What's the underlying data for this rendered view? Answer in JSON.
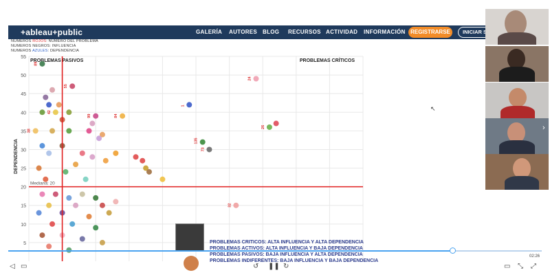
{
  "header": {
    "logo": "+ableau+public",
    "nav": [
      "GALERÍA",
      "AUTORES",
      "BLOG",
      "RECURSOS",
      "ACTIVIDAD",
      "INFORMACIÓN"
    ],
    "register_label": "REGISTRARSE",
    "login_label": "INICIAR SESIÓN"
  },
  "notes": {
    "line1_pre": "NUMEROS ",
    "line1_red": "ROJOS",
    "line1_post": ": NUMERO DEL PROBLEMA",
    "line2": "NUMEROS NEGROS: INFLUENCIA",
    "line3_pre": "NUMEROS ",
    "line3_blue": "AZULES",
    "line3_post": ": DEPENDENCIA"
  },
  "legend": [
    "PROBLEMAS CRITICOS: ALTA INFLUENCIA Y ALTA DEPENDENCIA",
    "PROBLEMAS ACTIVOS: ALTA INFLUENCIA Y BAJA DEPENDENCIA",
    "PROBLEMAS PASIVOS: BAJA INFLUENCIA Y ALTA DEPENDENCIA",
    "PROBLEMAS INDIFERENTES: BAJA INFLUENCIA Y BAJA DEPENDENCIA"
  ],
  "player": {
    "time": "02:26",
    "progress": 0.83
  },
  "colors": {
    "header_bg": "#1f3a5c",
    "register_bg": "#f28c28",
    "median_line": "#e02020"
  },
  "chart_data": {
    "type": "scatter",
    "ylabel": "DEPENDENCIA",
    "ylim": [
      0,
      55
    ],
    "yticks": [
      5,
      10,
      15,
      20,
      25,
      30,
      35,
      40,
      45,
      50,
      55
    ],
    "median_label": "Mediana: 20",
    "median_y": 20,
    "median_x": 5,
    "xlim": [
      0,
      50
    ],
    "quadrant_labels": {
      "top_left": "PROBLEMAS PASIVOS",
      "top_right": "PROBLEMAS CRÍTICOS"
    },
    "points": [
      {
        "x": 2.0,
        "y": 53,
        "c": "#3a7a4a",
        "label": "89"
      },
      {
        "x": 6.5,
        "y": 47,
        "c": "#c94a6a",
        "label": "55"
      },
      {
        "x": 3.5,
        "y": 46,
        "c": "#d9a0a8",
        "label": ""
      },
      {
        "x": 2.5,
        "y": 44,
        "c": "#8a6a9a",
        "label": ""
      },
      {
        "x": 3.0,
        "y": 42,
        "c": "#3a5ac8",
        "label": ""
      },
      {
        "x": 4.5,
        "y": 42,
        "c": "#e89a5a",
        "label": ""
      },
      {
        "x": 2.0,
        "y": 40,
        "c": "#6a9a3a",
        "label": ""
      },
      {
        "x": 4.0,
        "y": 40,
        "c": "#e8c84a",
        "label": "42"
      },
      {
        "x": 6.0,
        "y": 40,
        "c": "#8aa03a",
        "label": ""
      },
      {
        "x": 10.0,
        "y": 39,
        "c": "#c94a8a",
        "label": "99"
      },
      {
        "x": 14.0,
        "y": 39,
        "c": "#f0b040",
        "label": "84"
      },
      {
        "x": 9.5,
        "y": 37,
        "c": "#d8a0c0",
        "label": ""
      },
      {
        "x": 5.0,
        "y": 38,
        "c": "#c85a3a",
        "label": ""
      },
      {
        "x": 1.0,
        "y": 35,
        "c": "#f0c060",
        "label": "38"
      },
      {
        "x": 3.5,
        "y": 35,
        "c": "#d4a850",
        "label": ""
      },
      {
        "x": 6.0,
        "y": 35,
        "c": "#5aa040",
        "label": ""
      },
      {
        "x": 9.0,
        "y": 35,
        "c": "#e04a8a",
        "label": ""
      },
      {
        "x": 11.0,
        "y": 34,
        "c": "#e8a060",
        "label": ""
      },
      {
        "x": 10.5,
        "y": 33,
        "c": "#c8a0d8",
        "label": ""
      },
      {
        "x": 2.0,
        "y": 31,
        "c": "#4a8ad8",
        "label": ""
      },
      {
        "x": 5.0,
        "y": 31,
        "c": "#8a5a3a",
        "label": ""
      },
      {
        "x": 3.0,
        "y": 29,
        "c": "#a8c0e8",
        "label": ""
      },
      {
        "x": 8.0,
        "y": 29,
        "c": "#e86a7a",
        "label": ""
      },
      {
        "x": 13.0,
        "y": 29,
        "c": "#f0a030",
        "label": ""
      },
      {
        "x": 9.5,
        "y": 28,
        "c": "#d8a0c8",
        "label": ""
      },
      {
        "x": 11.5,
        "y": 27,
        "c": "#f0a040",
        "label": ""
      },
      {
        "x": 16.0,
        "y": 28,
        "c": "#e04a4a",
        "label": ""
      },
      {
        "x": 17.0,
        "y": 27,
        "c": "#e04a4a",
        "label": ""
      },
      {
        "x": 17.5,
        "y": 25,
        "c": "#c8a030",
        "label": ""
      },
      {
        "x": 18.0,
        "y": 24,
        "c": "#a07040",
        "label": ""
      },
      {
        "x": 20.0,
        "y": 22,
        "c": "#f0c040",
        "label": ""
      },
      {
        "x": 7.0,
        "y": 26,
        "c": "#e8a040",
        "label": ""
      },
      {
        "x": 5.5,
        "y": 24,
        "c": "#5ab06a",
        "label": ""
      },
      {
        "x": 8.5,
        "y": 22,
        "c": "#7ad0c0",
        "label": ""
      },
      {
        "x": 2.5,
        "y": 22,
        "c": "#e06040",
        "label": ""
      },
      {
        "x": 1.5,
        "y": 25,
        "c": "#d87a3a",
        "label": ""
      },
      {
        "x": 24.0,
        "y": 42,
        "c": "#3a5ac8",
        "label": "1"
      },
      {
        "x": 26.0,
        "y": 32,
        "c": "#3a8a3a",
        "label": "135"
      },
      {
        "x": 27.0,
        "y": 30,
        "c": "#6a6a6a",
        "label": "73"
      },
      {
        "x": 34.0,
        "y": 49,
        "c": "#f0a0b0",
        "label": "24"
      },
      {
        "x": 37.0,
        "y": 37,
        "c": "#e04a5a",
        "label": ""
      },
      {
        "x": 36.0,
        "y": 36,
        "c": "#6ab04a",
        "label": "26"
      },
      {
        "x": 31.0,
        "y": 15,
        "c": "#f0a0a0",
        "label": "32"
      },
      {
        "x": 2.0,
        "y": 18,
        "c": "#e87ab0",
        "label": ""
      },
      {
        "x": 4.0,
        "y": 18,
        "c": "#c94a6a",
        "label": ""
      },
      {
        "x": 6.0,
        "y": 17,
        "c": "#6a9ad8",
        "label": ""
      },
      {
        "x": 8.0,
        "y": 18,
        "c": "#c8c0a0",
        "label": ""
      },
      {
        "x": 10.0,
        "y": 17,
        "c": "#3a7a3a",
        "label": ""
      },
      {
        "x": 3.0,
        "y": 15,
        "c": "#e8c04a",
        "label": ""
      },
      {
        "x": 7.0,
        "y": 15,
        "c": "#d8a0c0",
        "label": ""
      },
      {
        "x": 11.0,
        "y": 15,
        "c": "#c94a4a",
        "label": ""
      },
      {
        "x": 13.0,
        "y": 16,
        "c": "#f0b0b0",
        "label": ""
      },
      {
        "x": 1.5,
        "y": 13,
        "c": "#5a8ad8",
        "label": ""
      },
      {
        "x": 5.0,
        "y": 13,
        "c": "#6a4a9a",
        "label": ""
      },
      {
        "x": 9.0,
        "y": 12,
        "c": "#e0803a",
        "label": ""
      },
      {
        "x": 12.0,
        "y": 13,
        "c": "#c8a040",
        "label": ""
      },
      {
        "x": 3.5,
        "y": 10,
        "c": "#e04a4a",
        "label": ""
      },
      {
        "x": 6.5,
        "y": 10,
        "c": "#4aa0d0",
        "label": ""
      },
      {
        "x": 10.0,
        "y": 9,
        "c": "#3a8a4a",
        "label": ""
      },
      {
        "x": 2.0,
        "y": 7,
        "c": "#a85a3a",
        "label": ""
      },
      {
        "x": 5.0,
        "y": 7,
        "c": "#f0b0c0",
        "label": ""
      },
      {
        "x": 8.0,
        "y": 6,
        "c": "#6a6aa0",
        "label": ""
      },
      {
        "x": 11.0,
        "y": 5,
        "c": "#c8a04a",
        "label": ""
      },
      {
        "x": 3.0,
        "y": 4,
        "c": "#e87a6a",
        "label": ""
      },
      {
        "x": 6.0,
        "y": 3,
        "c": "#5aa06a",
        "label": ""
      }
    ]
  }
}
